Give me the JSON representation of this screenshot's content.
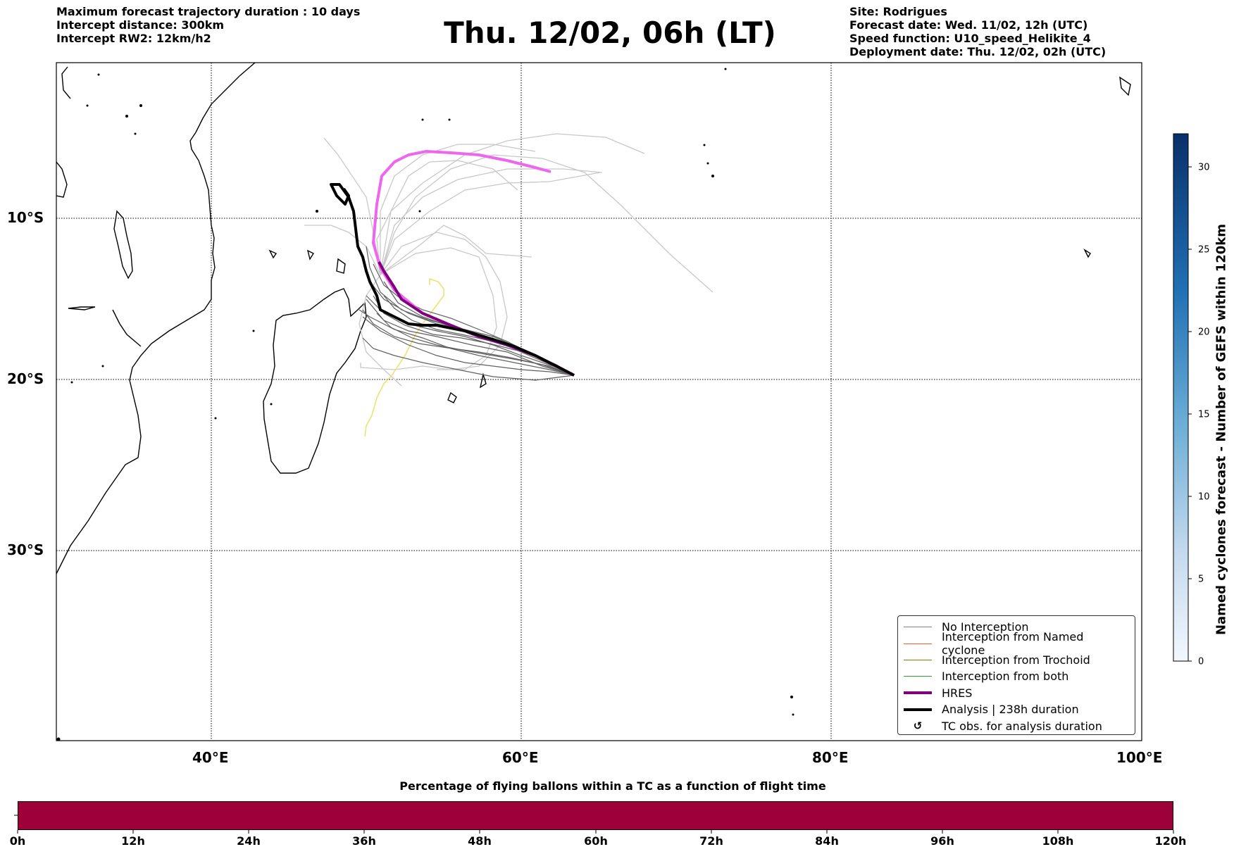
{
  "header": {
    "left": [
      "Maximum forecast trajectory duration : 10 days",
      "Intercept distance: 300km",
      "Intercept RW2: 12km/h2"
    ],
    "title": "Thu. 12/02, 06h (LT)",
    "right": [
      "Site: Rodrigues",
      "Forecast date: Wed. 11/02, 12h (UTC)",
      "Speed function: U10_speed_Helikite_4",
      "Deployment date: Thu. 12/02, 02h (UTC)"
    ]
  },
  "map": {
    "lon_labels": [
      "40°E",
      "60°E",
      "80°E",
      "100°E"
    ],
    "lat_labels": [
      "10°S",
      "20°S",
      "30°S"
    ],
    "gridline_style": "dotted",
    "legend_position": "bottom-right"
  },
  "legend": [
    {
      "label": "No Interception",
      "color": "#808080",
      "style": "line-thin"
    },
    {
      "label": "Interception from Named cyclone",
      "color": "#ff5a1f",
      "style": "line-thin"
    },
    {
      "label": "Interception from Trochoid",
      "color": "#808000",
      "style": "line-thin"
    },
    {
      "label": "Interception from both",
      "color": "#2ca02c",
      "style": "line-thin"
    },
    {
      "label": "HRES",
      "color": "#800080",
      "style": "line-thick"
    },
    {
      "label": "Analysis | 238h duration",
      "color": "#000000",
      "style": "line-thick"
    },
    {
      "label": "TC obs. for analysis duration",
      "color": "#000000",
      "style": "cyclone-icon"
    }
  ],
  "colorbar_vertical": {
    "label": "Named cyclones forecast - Number of GEFS within 120km",
    "ticks": [
      "0",
      "5",
      "10",
      "15",
      "20",
      "25",
      "30"
    ],
    "range": [
      0,
      32
    ],
    "colormap": "Blues"
  },
  "colorbar_horizontal": {
    "title": "Percentage of flying ballons within a TC as a function of flight time",
    "ticks": [
      "0h",
      "12h",
      "24h",
      "36h",
      "48h",
      "60h",
      "72h",
      "84h",
      "96h",
      "108h",
      "120h"
    ],
    "fill_color": "#9e003a"
  },
  "colors": {
    "hres_forecast": "#ee66ee",
    "hres_observed": "#800080",
    "analysis": "#000000",
    "ensemble_light": "#c8c8c8",
    "ensemble_dark": "#606060",
    "trochoid_track": "#eee06a"
  }
}
